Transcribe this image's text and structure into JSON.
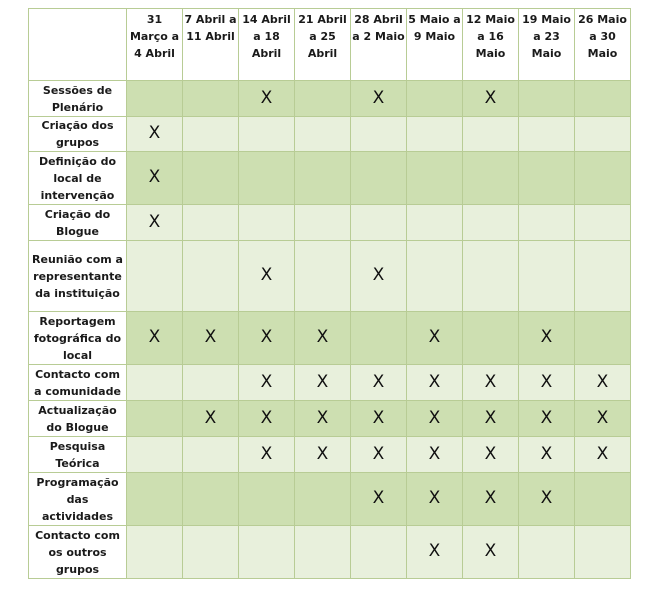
{
  "columns": [
    "31 Março a 4 Abril",
    "7 Abril a 11 Abril",
    "14 Abril a 18 Abril",
    "21 Abril a 25 Abril",
    "28 Abril a 2 Maio",
    "5 Maio a 9 Maio",
    "12 Maio a 16 Maio",
    "19 Maio a 23 Maio",
    "26 Maio a 30 Maio"
  ],
  "mark_symbol": "X",
  "rows": [
    {
      "label": "Sessões de Plenário",
      "marks": [
        false,
        false,
        true,
        false,
        true,
        false,
        true,
        false,
        false
      ]
    },
    {
      "label": "Criação dos grupos",
      "marks": [
        true,
        false,
        false,
        false,
        false,
        false,
        false,
        false,
        false
      ]
    },
    {
      "label": "Definição do local de intervenção",
      "marks": [
        true,
        false,
        false,
        false,
        false,
        false,
        false,
        false,
        false
      ]
    },
    {
      "label": "Criação do Blogue",
      "marks": [
        true,
        false,
        false,
        false,
        false,
        false,
        false,
        false,
        false
      ]
    },
    {
      "label": "Reunião com a representante da instituição",
      "marks": [
        false,
        false,
        true,
        false,
        true,
        false,
        false,
        false,
        false
      ]
    },
    {
      "label": "Reportagem fotográfica do local",
      "marks": [
        true,
        true,
        true,
        true,
        false,
        true,
        false,
        true,
        false
      ]
    },
    {
      "label": "Contacto com a comunidade",
      "marks": [
        false,
        false,
        true,
        true,
        true,
        true,
        true,
        true,
        true
      ]
    },
    {
      "label": "Actualização do Blogue",
      "marks": [
        false,
        true,
        true,
        true,
        true,
        true,
        true,
        true,
        true
      ]
    },
    {
      "label": "Pesquisa Teórica",
      "marks": [
        false,
        false,
        true,
        true,
        true,
        true,
        true,
        true,
        true
      ]
    },
    {
      "label": "Programação das actividades",
      "marks": [
        false,
        false,
        false,
        false,
        true,
        true,
        true,
        true,
        false
      ]
    },
    {
      "label": "Contacto com os outros grupos",
      "marks": [
        false,
        false,
        false,
        false,
        false,
        true,
        true,
        false,
        false
      ]
    }
  ]
}
